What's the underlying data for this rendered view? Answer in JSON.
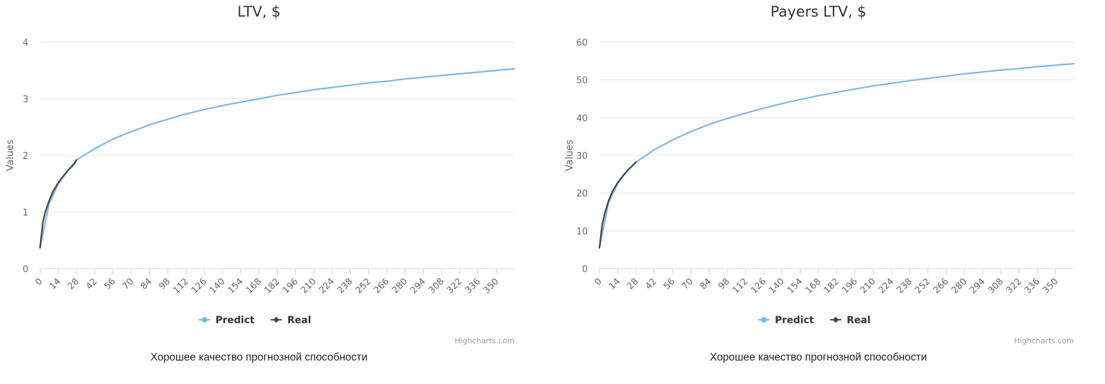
{
  "chart_data": [
    {
      "type": "line",
      "title": "LTV, $",
      "ylabel": "Values",
      "xlabel": "",
      "ylim": [
        0,
        4
      ],
      "y_ticks": [
        "0",
        "1",
        "2",
        "3",
        "4"
      ],
      "xlim": [
        0,
        364
      ],
      "x_ticks": [
        "0",
        "14",
        "28",
        "42",
        "56",
        "70",
        "84",
        "98",
        "112",
        "126",
        "140",
        "154",
        "168",
        "182",
        "196",
        "210",
        "224",
        "238",
        "252",
        "266",
        "280",
        "294",
        "308",
        "322",
        "336",
        "350"
      ],
      "grid": true,
      "legend_position": "bottom-center",
      "series": [
        {
          "name": "Predict",
          "color": "#7cb5ec",
          "x": [
            0,
            7,
            14,
            21,
            28,
            42,
            56,
            70,
            84,
            98,
            112,
            126,
            140,
            154,
            168,
            182,
            196,
            210,
            224,
            238,
            252,
            266,
            280,
            294,
            308,
            322,
            336,
            350,
            364
          ],
          "y": [
            0.37,
            1.15,
            1.5,
            1.72,
            1.92,
            2.12,
            2.29,
            2.42,
            2.54,
            2.64,
            2.73,
            2.81,
            2.88,
            2.94,
            3.0,
            3.06,
            3.11,
            3.16,
            3.2,
            3.24,
            3.28,
            3.31,
            3.35,
            3.38,
            3.41,
            3.44,
            3.47,
            3.5,
            3.53
          ]
        },
        {
          "name": "Real",
          "color": "#434348",
          "x": [
            0,
            2,
            4,
            7,
            10,
            14,
            18,
            22,
            26,
            28
          ],
          "y": [
            0.37,
            0.8,
            1.0,
            1.2,
            1.37,
            1.52,
            1.64,
            1.75,
            1.84,
            1.92
          ]
        }
      ],
      "credits": "Highcharts.com"
    },
    {
      "type": "line",
      "title": "Payers LTV, $",
      "ylabel": "Values",
      "xlabel": "",
      "ylim": [
        0,
        60
      ],
      "y_ticks": [
        "0",
        "10",
        "20",
        "30",
        "40",
        "50",
        "60"
      ],
      "xlim": [
        0,
        364
      ],
      "x_ticks": [
        "0",
        "14",
        "28",
        "42",
        "56",
        "70",
        "84",
        "98",
        "112",
        "126",
        "140",
        "154",
        "168",
        "182",
        "196",
        "210",
        "224",
        "238",
        "252",
        "266",
        "280",
        "294",
        "308",
        "322",
        "336",
        "350"
      ],
      "grid": true,
      "legend_position": "bottom-center",
      "series": [
        {
          "name": "Predict",
          "color": "#7cb5ec",
          "x": [
            0,
            7,
            14,
            21,
            28,
            42,
            56,
            70,
            84,
            98,
            112,
            126,
            140,
            154,
            168,
            182,
            196,
            210,
            224,
            238,
            252,
            266,
            280,
            294,
            308,
            322,
            336,
            350,
            364
          ],
          "y": [
            5.5,
            17.5,
            22.5,
            25.8,
            28.2,
            31.5,
            34.1,
            36.3,
            38.2,
            39.8,
            41.2,
            42.5,
            43.7,
            44.8,
            45.8,
            46.7,
            47.6,
            48.4,
            49.1,
            49.8,
            50.4,
            51.0,
            51.6,
            52.1,
            52.6,
            53.0,
            53.5,
            53.9,
            54.3
          ]
        },
        {
          "name": "Real",
          "color": "#434348",
          "x": [
            0,
            2,
            4,
            7,
            10,
            14,
            18,
            22,
            26,
            28
          ],
          "y": [
            5.5,
            11.5,
            14.5,
            18.0,
            20.5,
            22.8,
            24.6,
            26.2,
            27.5,
            28.2
          ]
        }
      ],
      "credits": "Highcharts.com"
    }
  ],
  "captions": [
    "Хорошее качество прогнозной способности",
    "Хорошее качество прогнозной способности"
  ]
}
